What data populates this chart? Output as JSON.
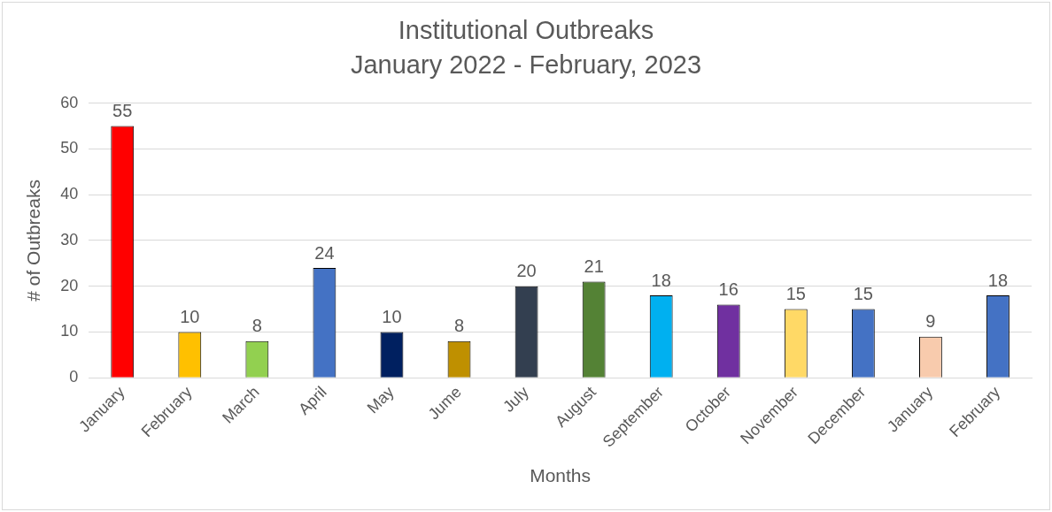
{
  "chart_data": {
    "type": "bar",
    "title": "Institutional Outbreaks",
    "subtitle": "January 2022 - February, 2023",
    "xlabel": "Months",
    "ylabel": "# of Outbreaks",
    "categories": [
      "January",
      "February",
      "March",
      "April",
      "May",
      "Jume",
      "July",
      "August",
      "September",
      "October",
      "November",
      "December",
      "January",
      "February"
    ],
    "values": [
      55,
      10,
      8,
      24,
      10,
      8,
      20,
      21,
      18,
      16,
      15,
      15,
      9,
      18
    ],
    "colors": [
      "#ff0000",
      "#ffc000",
      "#92d050",
      "#4472c4",
      "#002060",
      "#bf9000",
      "#333f50",
      "#548235",
      "#00b0f0",
      "#7030a0",
      "#ffd966",
      "#4472c4",
      "#f8cbad",
      "#4472c4"
    ],
    "ylim": [
      0,
      60
    ],
    "yticks": [
      0,
      10,
      20,
      30,
      40,
      50,
      60
    ],
    "grid": "y",
    "data_labels": true,
    "legend": false
  }
}
